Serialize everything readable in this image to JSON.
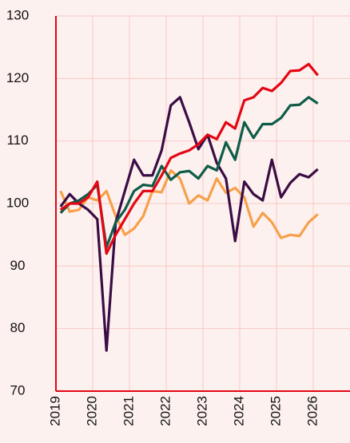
{
  "chart_data": {
    "type": "line",
    "x": [
      2019.125,
      2019.375,
      2019.625,
      2019.875,
      2020.125,
      2020.375,
      2020.625,
      2020.875,
      2021.125,
      2021.375,
      2021.625,
      2021.875,
      2022.125,
      2022.375,
      2022.625,
      2022.875,
      2023.125,
      2023.375,
      2023.625,
      2023.875,
      2024.125,
      2024.375,
      2024.625,
      2024.875,
      2025.125,
      2025.375,
      2025.625,
      2025.875,
      2026.125
    ],
    "series": [
      {
        "color": "#f7a04b",
        "values": [
          102,
          98.7,
          99,
          101,
          100.5,
          102,
          98,
          95,
          96,
          98,
          102,
          101.8,
          105.3,
          104,
          100,
          101.3,
          100.5,
          104,
          101.7,
          102.5,
          101,
          96.3,
          98.5,
          97,
          94.5,
          95,
          94.8,
          97,
          98.3
        ]
      },
      {
        "color": "#3a0d45",
        "values": [
          99.5,
          101.5,
          100,
          99,
          97.5,
          76.5,
          97,
          102,
          107,
          104.5,
          104.5,
          108.5,
          115.7,
          117,
          113,
          108.7,
          111,
          106.5,
          104,
          94,
          103.5,
          101.5,
          100.5,
          107,
          101,
          103.3,
          104.7,
          104.2,
          105.5
        ]
      },
      {
        "color": "#0f5c48",
        "values": [
          98.5,
          100,
          100.5,
          101.5,
          103,
          93,
          97,
          99,
          102,
          103,
          102.8,
          106,
          103.8,
          105,
          105.2,
          104,
          106,
          105.3,
          109.8,
          107,
          113,
          110.5,
          112.7,
          112.7,
          113.7,
          115.7,
          115.8,
          117,
          116
        ]
      },
      {
        "color": "#e30613",
        "values": [
          99,
          100,
          100,
          101,
          103.5,
          92,
          95,
          97.5,
          100,
          102,
          102,
          104.5,
          107.3,
          108,
          108.5,
          109.5,
          111,
          110.3,
          113,
          112,
          116.5,
          117,
          118.5,
          118,
          119.3,
          121.2,
          121.3,
          122.3,
          120.5
        ]
      }
    ],
    "xlim": [
      2019,
      2027
    ],
    "xticks": [
      2019,
      2020,
      2021,
      2022,
      2023,
      2024,
      2025,
      2026
    ],
    "ylim": [
      70,
      130
    ],
    "yticks": [
      70,
      80,
      90,
      100,
      110,
      120,
      130
    ],
    "grid": true
  }
}
